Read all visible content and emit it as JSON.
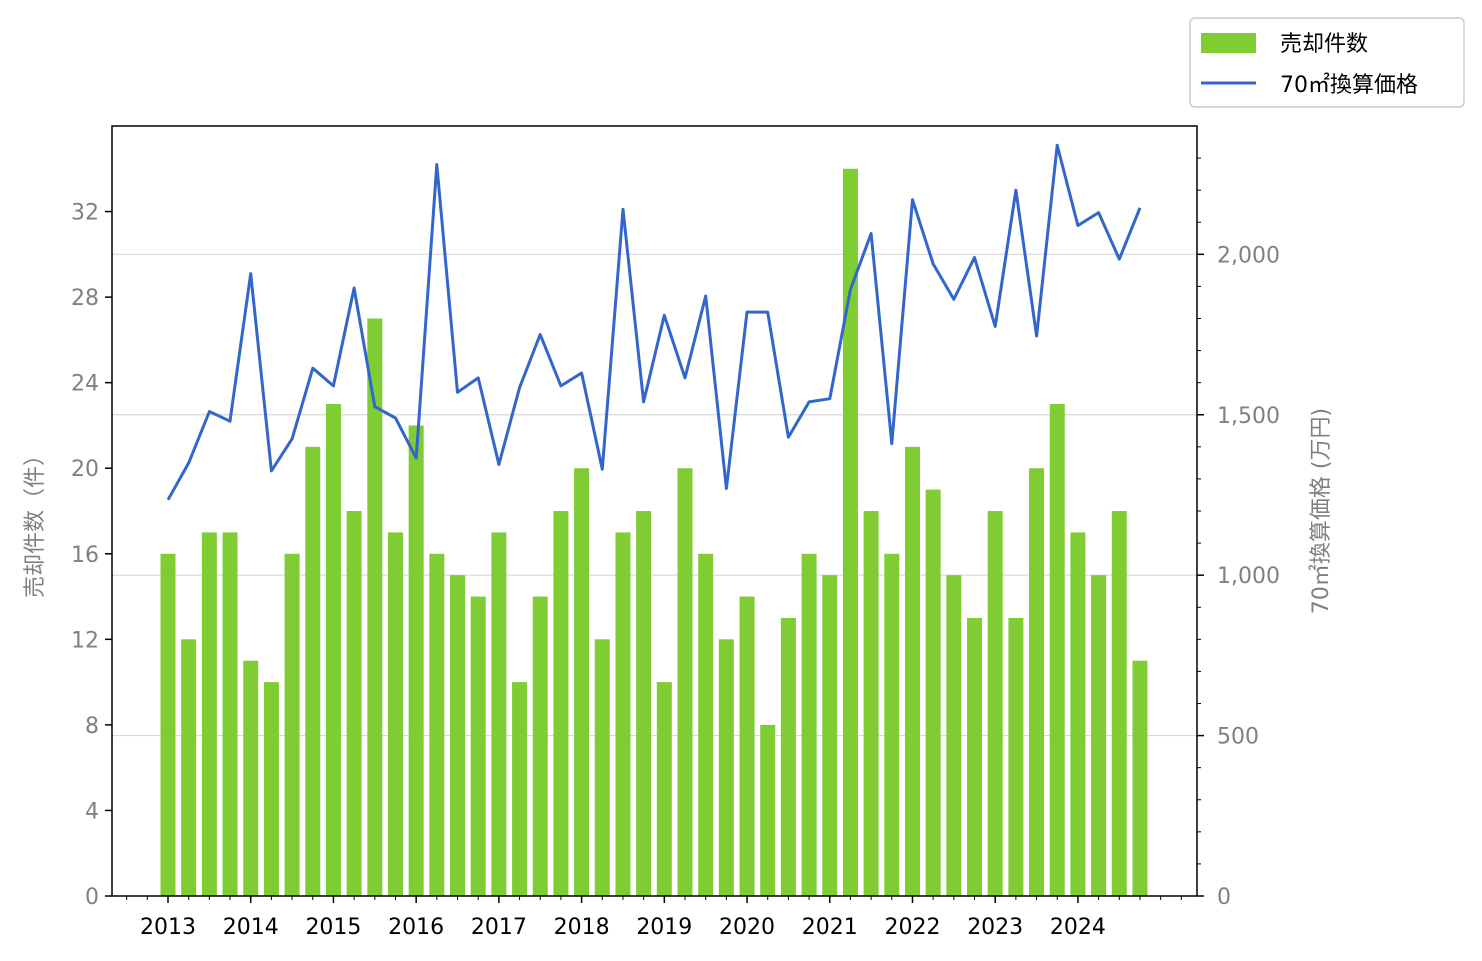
{
  "chart_data": {
    "type": "bar+line",
    "x": [
      "2013 Q1",
      "2013 Q2",
      "2013 Q3",
      "2013 Q4",
      "2014 Q1",
      "2014 Q2",
      "2014 Q3",
      "2014 Q4",
      "2015 Q1",
      "2015 Q2",
      "2015 Q3",
      "2015 Q4",
      "2016 Q1",
      "2016 Q2",
      "2016 Q3",
      "2016 Q4",
      "2017 Q1",
      "2017 Q2",
      "2017 Q3",
      "2017 Q4",
      "2018 Q1",
      "2018 Q2",
      "2018 Q3",
      "2018 Q4",
      "2019 Q1",
      "2019 Q2",
      "2019 Q3",
      "2019 Q4",
      "2020 Q1",
      "2020 Q2",
      "2020 Q3",
      "2020 Q4",
      "2021 Q1",
      "2021 Q2",
      "2021 Q3",
      "2021 Q4",
      "2022 Q1",
      "2022 Q2",
      "2022 Q3",
      "2022 Q4",
      "2023 Q1",
      "2023 Q2",
      "2023 Q3",
      "2023 Q4",
      "2024 Q1",
      "2024 Q2",
      "2024 Q3",
      "2024 Q4"
    ],
    "x_tick_labels": [
      "2013",
      "2014",
      "2015",
      "2016",
      "2017",
      "2018",
      "2019",
      "2020",
      "2021",
      "2022",
      "2023",
      "2024"
    ],
    "series": [
      {
        "name": "売却件数",
        "kind": "bar",
        "axis": "left",
        "color": "#80cc33",
        "values": [
          16,
          12,
          17,
          17,
          11,
          10,
          16,
          21,
          23,
          18,
          27,
          17,
          22,
          16,
          15,
          14,
          17,
          10,
          14,
          18,
          20,
          12,
          17,
          18,
          10,
          20,
          16,
          12,
          14,
          8,
          13,
          16,
          15,
          34,
          18,
          16,
          21,
          19,
          15,
          13,
          18,
          13,
          20,
          23,
          17,
          15,
          18,
          11
        ]
      },
      {
        "name": "70㎡換算価格",
        "kind": "line",
        "axis": "right",
        "color": "#3366cc",
        "values": [
          1235,
          1350,
          1510,
          1480,
          1940,
          1325,
          1425,
          1645,
          1590,
          1895,
          1525,
          1490,
          1365,
          2280,
          1570,
          1615,
          1345,
          1585,
          1750,
          1590,
          1630,
          1330,
          2140,
          1540,
          1810,
          1615,
          1870,
          1270,
          1820,
          1820,
          1430,
          1540,
          1550,
          1890,
          2065,
          1410,
          2170,
          1970,
          1860,
          1990,
          1775,
          2200,
          1745,
          2340,
          2090,
          2130,
          1985,
          2145
        ]
      }
    ],
    "y_left": {
      "label": "売却件数（件）",
      "ylim": [
        0,
        36
      ],
      "ticks": [
        "0",
        "4",
        "8",
        "12",
        "16",
        "20",
        "24",
        "28",
        "32"
      ]
    },
    "y_right": {
      "label": "70㎡換算価格 (万円)",
      "ylim": [
        0,
        2400
      ],
      "ticks": [
        "0",
        "500",
        "1,000",
        "1,500",
        "2,000"
      ]
    },
    "grid": "right-axis horizontal",
    "legend": "top-right outside"
  }
}
